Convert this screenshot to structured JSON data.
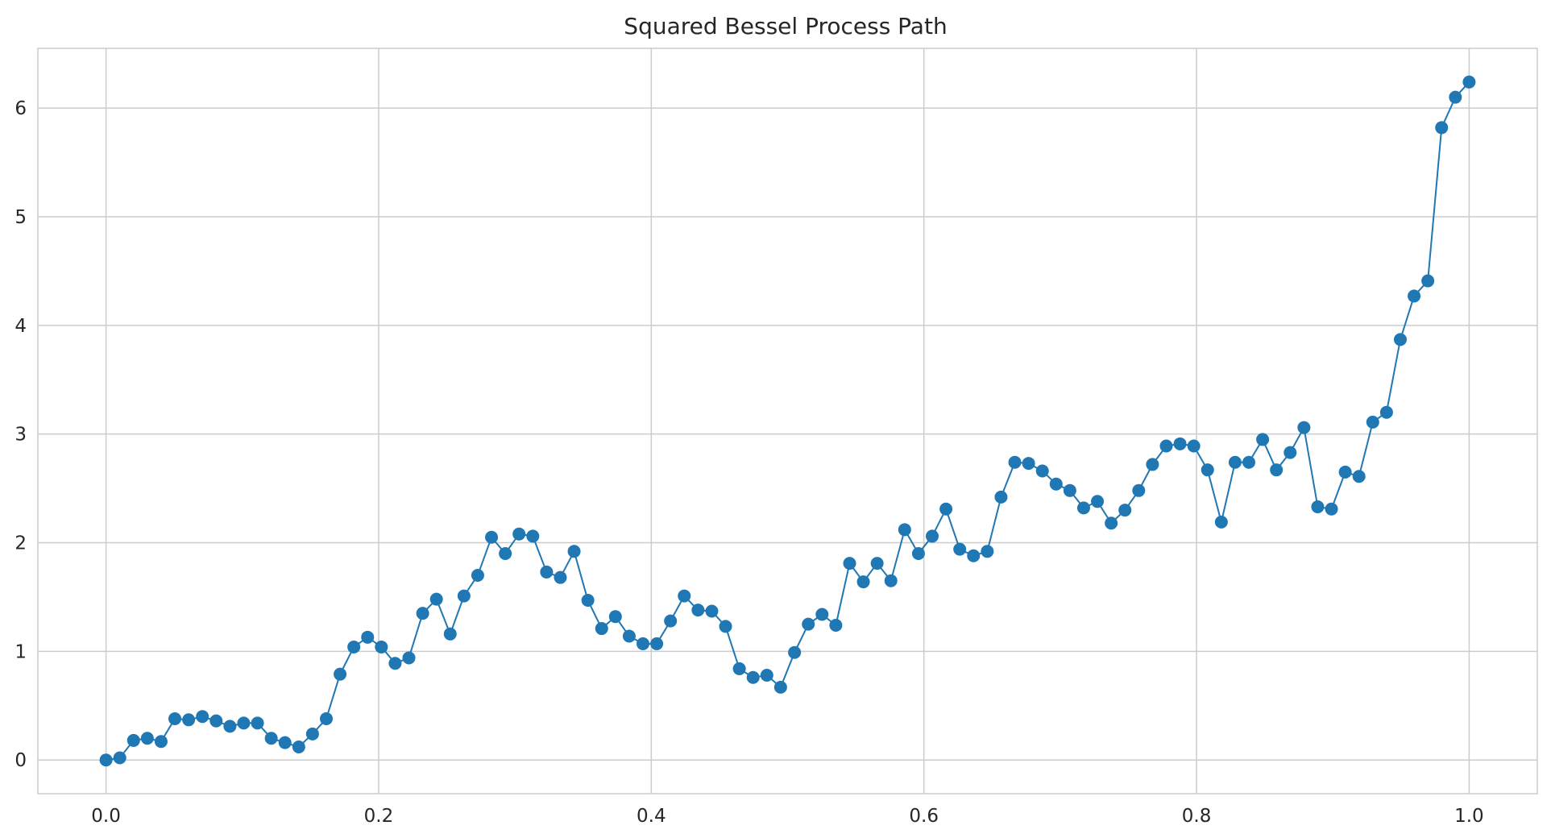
{
  "chart_data": {
    "type": "line",
    "title": "Squared Bessel Process Path",
    "xlabel": "",
    "ylabel": "",
    "xlim": [
      -0.05,
      1.05
    ],
    "ylim": [
      -0.31,
      6.55
    ],
    "xticks": [
      0.0,
      0.2,
      0.4,
      0.6,
      0.8,
      1.0
    ],
    "xtick_labels": [
      "0.0",
      "0.2",
      "0.4",
      "0.6",
      "0.8",
      "1.0"
    ],
    "yticks": [
      0,
      1,
      2,
      3,
      4,
      5,
      6
    ],
    "ytick_labels": [
      "0",
      "1",
      "2",
      "3",
      "4",
      "5",
      "6"
    ],
    "grid": true,
    "marker": "circle",
    "colors": {
      "series": "#1f77b4",
      "grid": "#cccccc",
      "frame": "#cccccc",
      "text": "#262626",
      "background": "#ffffff"
    },
    "series": [
      {
        "x": [
          0.0,
          0.0101,
          0.0202,
          0.0303,
          0.0404,
          0.0505,
          0.0606,
          0.0707,
          0.0808,
          0.0909,
          0.101,
          0.1111,
          0.1212,
          0.1313,
          0.1414,
          0.1515,
          0.1616,
          0.1717,
          0.1818,
          0.1919,
          0.202,
          0.2121,
          0.2222,
          0.2323,
          0.2424,
          0.2525,
          0.2626,
          0.2727,
          0.2828,
          0.2929,
          0.303,
          0.3131,
          0.3232,
          0.3333,
          0.3434,
          0.3535,
          0.3636,
          0.3737,
          0.3838,
          0.3939,
          0.404,
          0.4141,
          0.4242,
          0.4343,
          0.4444,
          0.4545,
          0.4646,
          0.4747,
          0.4848,
          0.4949,
          0.5051,
          0.5152,
          0.5253,
          0.5354,
          0.5455,
          0.5556,
          0.5657,
          0.5758,
          0.5859,
          0.596,
          0.6061,
          0.6162,
          0.6263,
          0.6364,
          0.6465,
          0.6566,
          0.6667,
          0.6768,
          0.6869,
          0.697,
          0.7071,
          0.7172,
          0.7273,
          0.7374,
          0.7475,
          0.7576,
          0.7677,
          0.7778,
          0.7879,
          0.798,
          0.8081,
          0.8182,
          0.8283,
          0.8384,
          0.8485,
          0.8586,
          0.8687,
          0.8788,
          0.8889,
          0.899,
          0.9091,
          0.9192,
          0.9293,
          0.9394,
          0.9495,
          0.9596,
          0.9697,
          0.9798,
          0.9899,
          1.0
        ],
        "y": [
          0.0,
          0.02,
          0.18,
          0.2,
          0.17,
          0.38,
          0.37,
          0.4,
          0.36,
          0.31,
          0.34,
          0.34,
          0.2,
          0.16,
          0.12,
          0.24,
          0.38,
          0.79,
          1.04,
          1.13,
          1.04,
          0.89,
          0.94,
          1.35,
          1.48,
          1.16,
          1.51,
          1.7,
          2.05,
          1.9,
          2.08,
          2.06,
          1.73,
          1.68,
          1.92,
          1.47,
          1.21,
          1.32,
          1.14,
          1.07,
          1.07,
          1.28,
          1.51,
          1.38,
          1.37,
          1.23,
          0.84,
          0.76,
          0.78,
          0.67,
          0.99,
          1.25,
          1.34,
          1.24,
          1.81,
          1.64,
          1.81,
          1.65,
          2.12,
          1.9,
          2.06,
          2.31,
          1.94,
          1.88,
          1.92,
          2.42,
          2.74,
          2.73,
          2.66,
          2.54,
          2.48,
          2.32,
          2.38,
          2.18,
          2.3,
          2.48,
          2.72,
          2.89,
          2.91,
          2.89,
          2.67,
          2.19,
          2.74,
          2.74,
          2.95,
          2.67,
          2.83,
          3.06,
          2.33,
          2.31,
          2.65,
          2.61,
          3.11,
          3.2,
          3.87,
          4.27,
          4.41,
          5.82,
          6.1,
          6.24
        ]
      }
    ]
  }
}
